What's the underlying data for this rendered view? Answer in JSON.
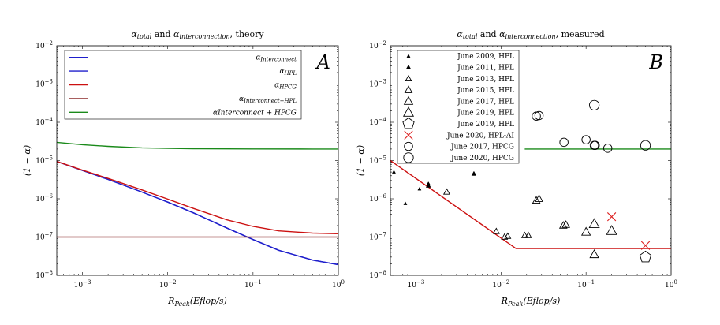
{
  "chart_data": [
    {
      "type": "line",
      "panel_label": "A",
      "title": "α_total and α_interconnection, theory",
      "title_parts": {
        "a1": "α",
        "s1": "total",
        "mid": " and ",
        "a2": "α",
        "s2": "interconnection",
        "end": ", theory"
      },
      "xlabel": "R_Peak(Eflop/s)",
      "xlabel_parts": {
        "main": "R",
        "sub": "Peak",
        "rest": "(Eflop/s)"
      },
      "ylabel": "(1 − α)",
      "xscale": "log",
      "yscale": "log",
      "xlim": [
        0.0005,
        1
      ],
      "ylim": [
        1e-08,
        0.01
      ],
      "xticks": [
        {
          "value": 0.001,
          "base": "10",
          "exp": "−3"
        },
        {
          "value": 0.01,
          "base": "10",
          "exp": "−2"
        },
        {
          "value": 0.1,
          "base": "10",
          "exp": "−1"
        },
        {
          "value": 1,
          "base": "10",
          "exp": "0"
        }
      ],
      "yticks": [
        {
          "value": 1e-08,
          "base": "10",
          "exp": "−8"
        },
        {
          "value": 1e-07,
          "base": "10",
          "exp": "−7"
        },
        {
          "value": 1e-06,
          "base": "10",
          "exp": "−6"
        },
        {
          "value": 1e-05,
          "base": "10",
          "exp": "−5"
        },
        {
          "value": 0.0001,
          "base": "10",
          "exp": "−4"
        },
        {
          "value": 0.001,
          "base": "10",
          "exp": "−3"
        },
        {
          "value": 0.01,
          "base": "10",
          "exp": "−2"
        }
      ],
      "legend_position": "top-left",
      "series": [
        {
          "name": "α_Interconnect",
          "label_main": "α",
          "label_sub": "Interconnect",
          "color": "#1f1fcc",
          "x": [
            0.0005,
            0.001,
            0.002,
            0.005,
            0.01,
            0.02,
            0.05,
            0.1,
            0.2,
            0.5,
            1
          ],
          "y": [
            9.5e-06,
            5.5e-06,
            3.2e-06,
            1.5e-06,
            8.2e-07,
            4.3e-07,
            1.7e-07,
            8.6e-08,
            4.5e-08,
            2.5e-08,
            1.9e-08
          ]
        },
        {
          "name": "α_HPL",
          "label_main": "α",
          "label_sub": "HPL",
          "color": "#1f1fcc",
          "x": [
            0.0005,
            0.001,
            0.002,
            0.005,
            0.01,
            0.02,
            0.05,
            0.1,
            0.2,
            0.5,
            1
          ],
          "y": [
            9.5e-06,
            5.5e-06,
            3.2e-06,
            1.5e-06,
            8.2e-07,
            4.3e-07,
            1.7e-07,
            8.6e-08,
            4.5e-08,
            2.5e-08,
            1.9e-08
          ]
        },
        {
          "name": "α_HPCG",
          "label_main": "α",
          "label_sub": "HPCG",
          "color": "#cc1010",
          "x": [
            0.0005,
            0.001,
            0.002,
            0.005,
            0.01,
            0.02,
            0.05,
            0.1,
            0.2,
            0.5,
            1
          ],
          "y": [
            9.5e-06,
            5.6e-06,
            3.4e-06,
            1.7e-06,
            9.8e-07,
            5.6e-07,
            2.8e-07,
            1.9e-07,
            1.45e-07,
            1.27e-07,
            1.22e-07
          ]
        },
        {
          "name": "α_Interconnect+HPL",
          "label_main": "α",
          "label_sub": "Interconnect+HPL",
          "color": "#8b2a2a",
          "x": [
            0.0005,
            1
          ],
          "y": [
            1e-07,
            1e-07
          ]
        },
        {
          "name": "αInterconnect + HPCG",
          "label_main": "αInterconnect + HPCG",
          "label_sub": "",
          "color": "#1a8a1a",
          "x": [
            0.0005,
            0.001,
            0.002,
            0.005,
            0.01,
            0.02,
            0.05,
            0.1,
            0.5,
            1
          ],
          "y": [
            3e-05,
            2.6e-05,
            2.35e-05,
            2.15e-05,
            2.08e-05,
            2.04e-05,
            2.02e-05,
            2.01e-05,
            2e-05,
            2e-05
          ]
        }
      ]
    },
    {
      "type": "scatter",
      "panel_label": "B",
      "title": "α_total and α_interconnection, measured",
      "title_parts": {
        "a1": "α",
        "s1": "total",
        "mid": " and ",
        "a2": "α",
        "s2": "interconnection",
        "end": ", measured"
      },
      "xlabel": "R_Peak(Eflop/s)",
      "xlabel_parts": {
        "main": "R",
        "sub": "Peak",
        "rest": "(Eflop/s)"
      },
      "ylabel": "(1 − α)",
      "xscale": "log",
      "yscale": "log",
      "xlim": [
        0.0005,
        1
      ],
      "ylim": [
        1e-08,
        0.01
      ],
      "xticks": [
        {
          "value": 0.001,
          "base": "10",
          "exp": "−3"
        },
        {
          "value": 0.01,
          "base": "10",
          "exp": "−2"
        },
        {
          "value": 0.1,
          "base": "10",
          "exp": "−1"
        },
        {
          "value": 1,
          "base": "10",
          "exp": "0"
        }
      ],
      "yticks": [
        {
          "value": 1e-08,
          "base": "10",
          "exp": "−8"
        },
        {
          "value": 1e-07,
          "base": "10",
          "exp": "−7"
        },
        {
          "value": 1e-06,
          "base": "10",
          "exp": "−6"
        },
        {
          "value": 1e-05,
          "base": "10",
          "exp": "−5"
        },
        {
          "value": 0.0001,
          "base": "10",
          "exp": "−4"
        },
        {
          "value": 0.001,
          "base": "10",
          "exp": "−3"
        },
        {
          "value": 0.01,
          "base": "10",
          "exp": "−2"
        }
      ],
      "legend_position": "top-left",
      "series": [
        {
          "name": "June 2009, HPL",
          "marker": "triangle",
          "marker_size": 1,
          "color": "#000000",
          "x": [
            0.00055,
            0.00075,
            0.0011,
            0.0014
          ],
          "y": [
            5e-06,
            7.5e-07,
            1.8e-06,
            2.5e-06
          ]
        },
        {
          "name": "June 2011, HPL",
          "marker": "triangle",
          "marker_size": 1.4,
          "color": "#000000",
          "x": [
            0.0014,
            0.0048
          ],
          "y": [
            2.2e-06,
            4.5e-06
          ]
        },
        {
          "name": "June 2013, HPL",
          "marker": "triangle",
          "marker_size": 1.8,
          "color": "#000000",
          "x": [
            0.0023,
            0.0088,
            0.011,
            0.012,
            0.019,
            0.021
          ],
          "y": [
            1.5e-06,
            1.4e-07,
            1e-07,
            1.05e-07,
            1.1e-07,
            1.1e-07
          ]
        },
        {
          "name": "June 2015, HPL",
          "marker": "triangle",
          "marker_size": 2.2,
          "color": "#000000",
          "x": [
            0.026,
            0.028,
            0.054,
            0.058
          ],
          "y": [
            9e-07,
            1e-06,
            2e-07,
            2.1e-07
          ]
        },
        {
          "name": "June 2017, HPL",
          "marker": "triangle",
          "marker_size": 2.6,
          "color": "#000000",
          "x": [
            0.125,
            0.1
          ],
          "y": [
            3.5e-08,
            1.35e-07
          ]
        },
        {
          "name": "June 2019, HPL",
          "marker": "triangle",
          "marker_size": 3.0,
          "color": "#000000",
          "x": [
            0.125,
            0.2
          ],
          "y": [
            2.2e-07,
            1.45e-07
          ]
        },
        {
          "name": "June 2019, HPL",
          "marker": "pentagon",
          "marker_size": 3.4,
          "color": "#000000",
          "x": [
            0.5
          ],
          "y": [
            3e-08
          ]
        },
        {
          "name": "June 2020, HPL-AI",
          "marker": "x",
          "marker_size": 2.4,
          "color": "#dd2020",
          "x": [
            0.2,
            0.5
          ],
          "y": [
            3.4e-07,
            6e-08
          ]
        },
        {
          "name": "June 2017, HPCG",
          "marker": "circle",
          "marker_size": 2.4,
          "color": "#000000",
          "x": [
            0.026,
            0.028,
            0.055,
            0.1,
            0.125,
            0.128,
            0.18
          ],
          "y": [
            0.000145,
            0.00015,
            3e-05,
            3.5e-05,
            2.5e-05,
            2.5e-05,
            2.1e-05
          ]
        },
        {
          "name": "June 2020, HPCG",
          "marker": "circle",
          "marker_size": 2.8,
          "color": "#000000",
          "x": [
            0.125,
            0.5
          ],
          "y": [
            0.00028,
            2.5e-05
          ]
        }
      ],
      "lines": [
        {
          "name": "HPL fit",
          "color": "#cc1010",
          "x": [
            0.0005,
            0.015,
            1
          ],
          "y": [
            1e-05,
            5e-08,
            5e-08
          ]
        },
        {
          "name": "HPCG fit",
          "color": "#1a8a1a",
          "x": [
            0.019,
            1
          ],
          "y": [
            2e-05,
            2e-05
          ]
        }
      ]
    }
  ]
}
